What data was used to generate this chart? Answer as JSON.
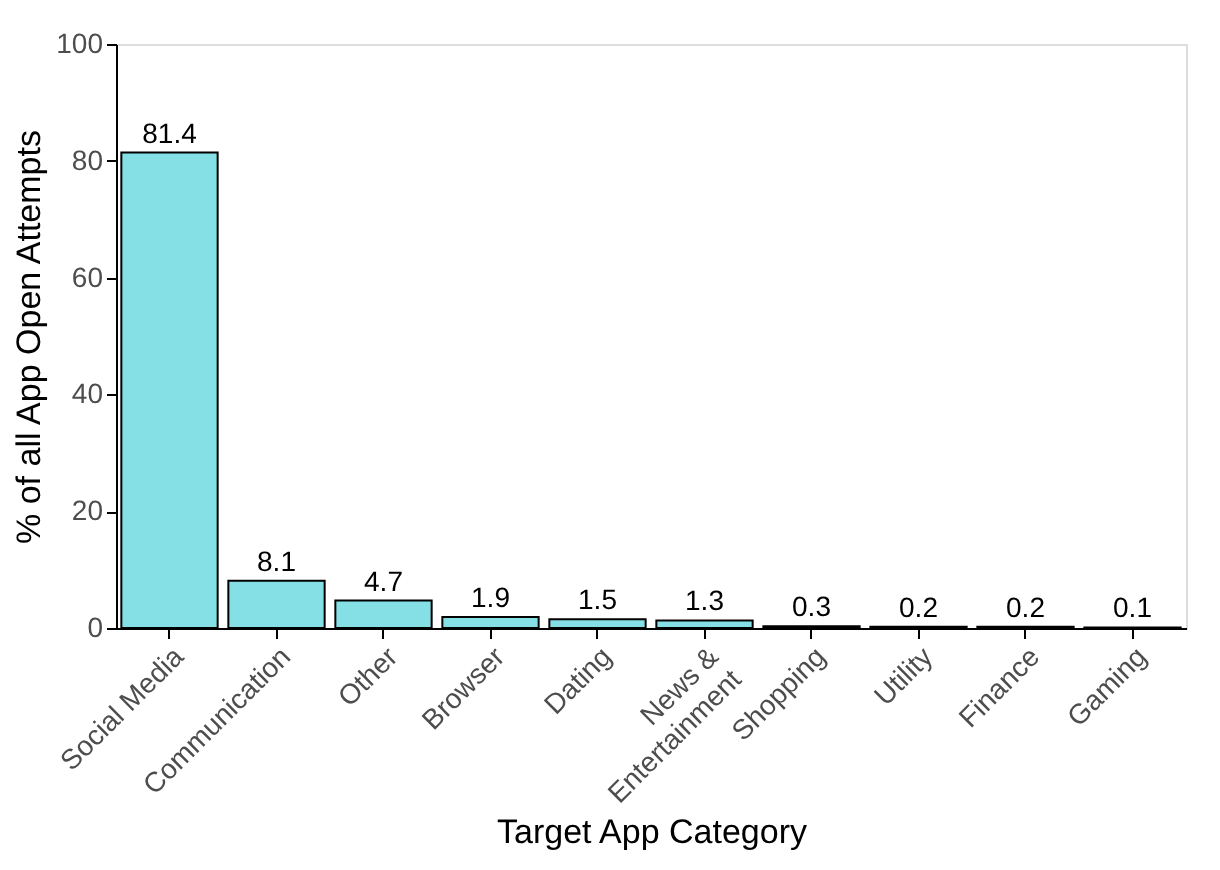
{
  "chart_data": {
    "type": "bar",
    "xlabel": "Target App Category",
    "ylabel": "% of all App Open Attempts",
    "categories": [
      "Social Media",
      "Communication",
      "Other",
      "Browser",
      "Dating",
      "News &\nEntertainment",
      "Shopping",
      "Utility",
      "Finance",
      "Gaming"
    ],
    "values": [
      81.4,
      8.1,
      4.7,
      1.9,
      1.5,
      1.3,
      0.3,
      0.2,
      0.2,
      0.1
    ],
    "color": "#84e0e4",
    "ylim": [
      0,
      100
    ],
    "yticks": [
      0,
      20,
      40,
      60,
      80,
      100
    ],
    "grid": false,
    "data_labels": true
  }
}
